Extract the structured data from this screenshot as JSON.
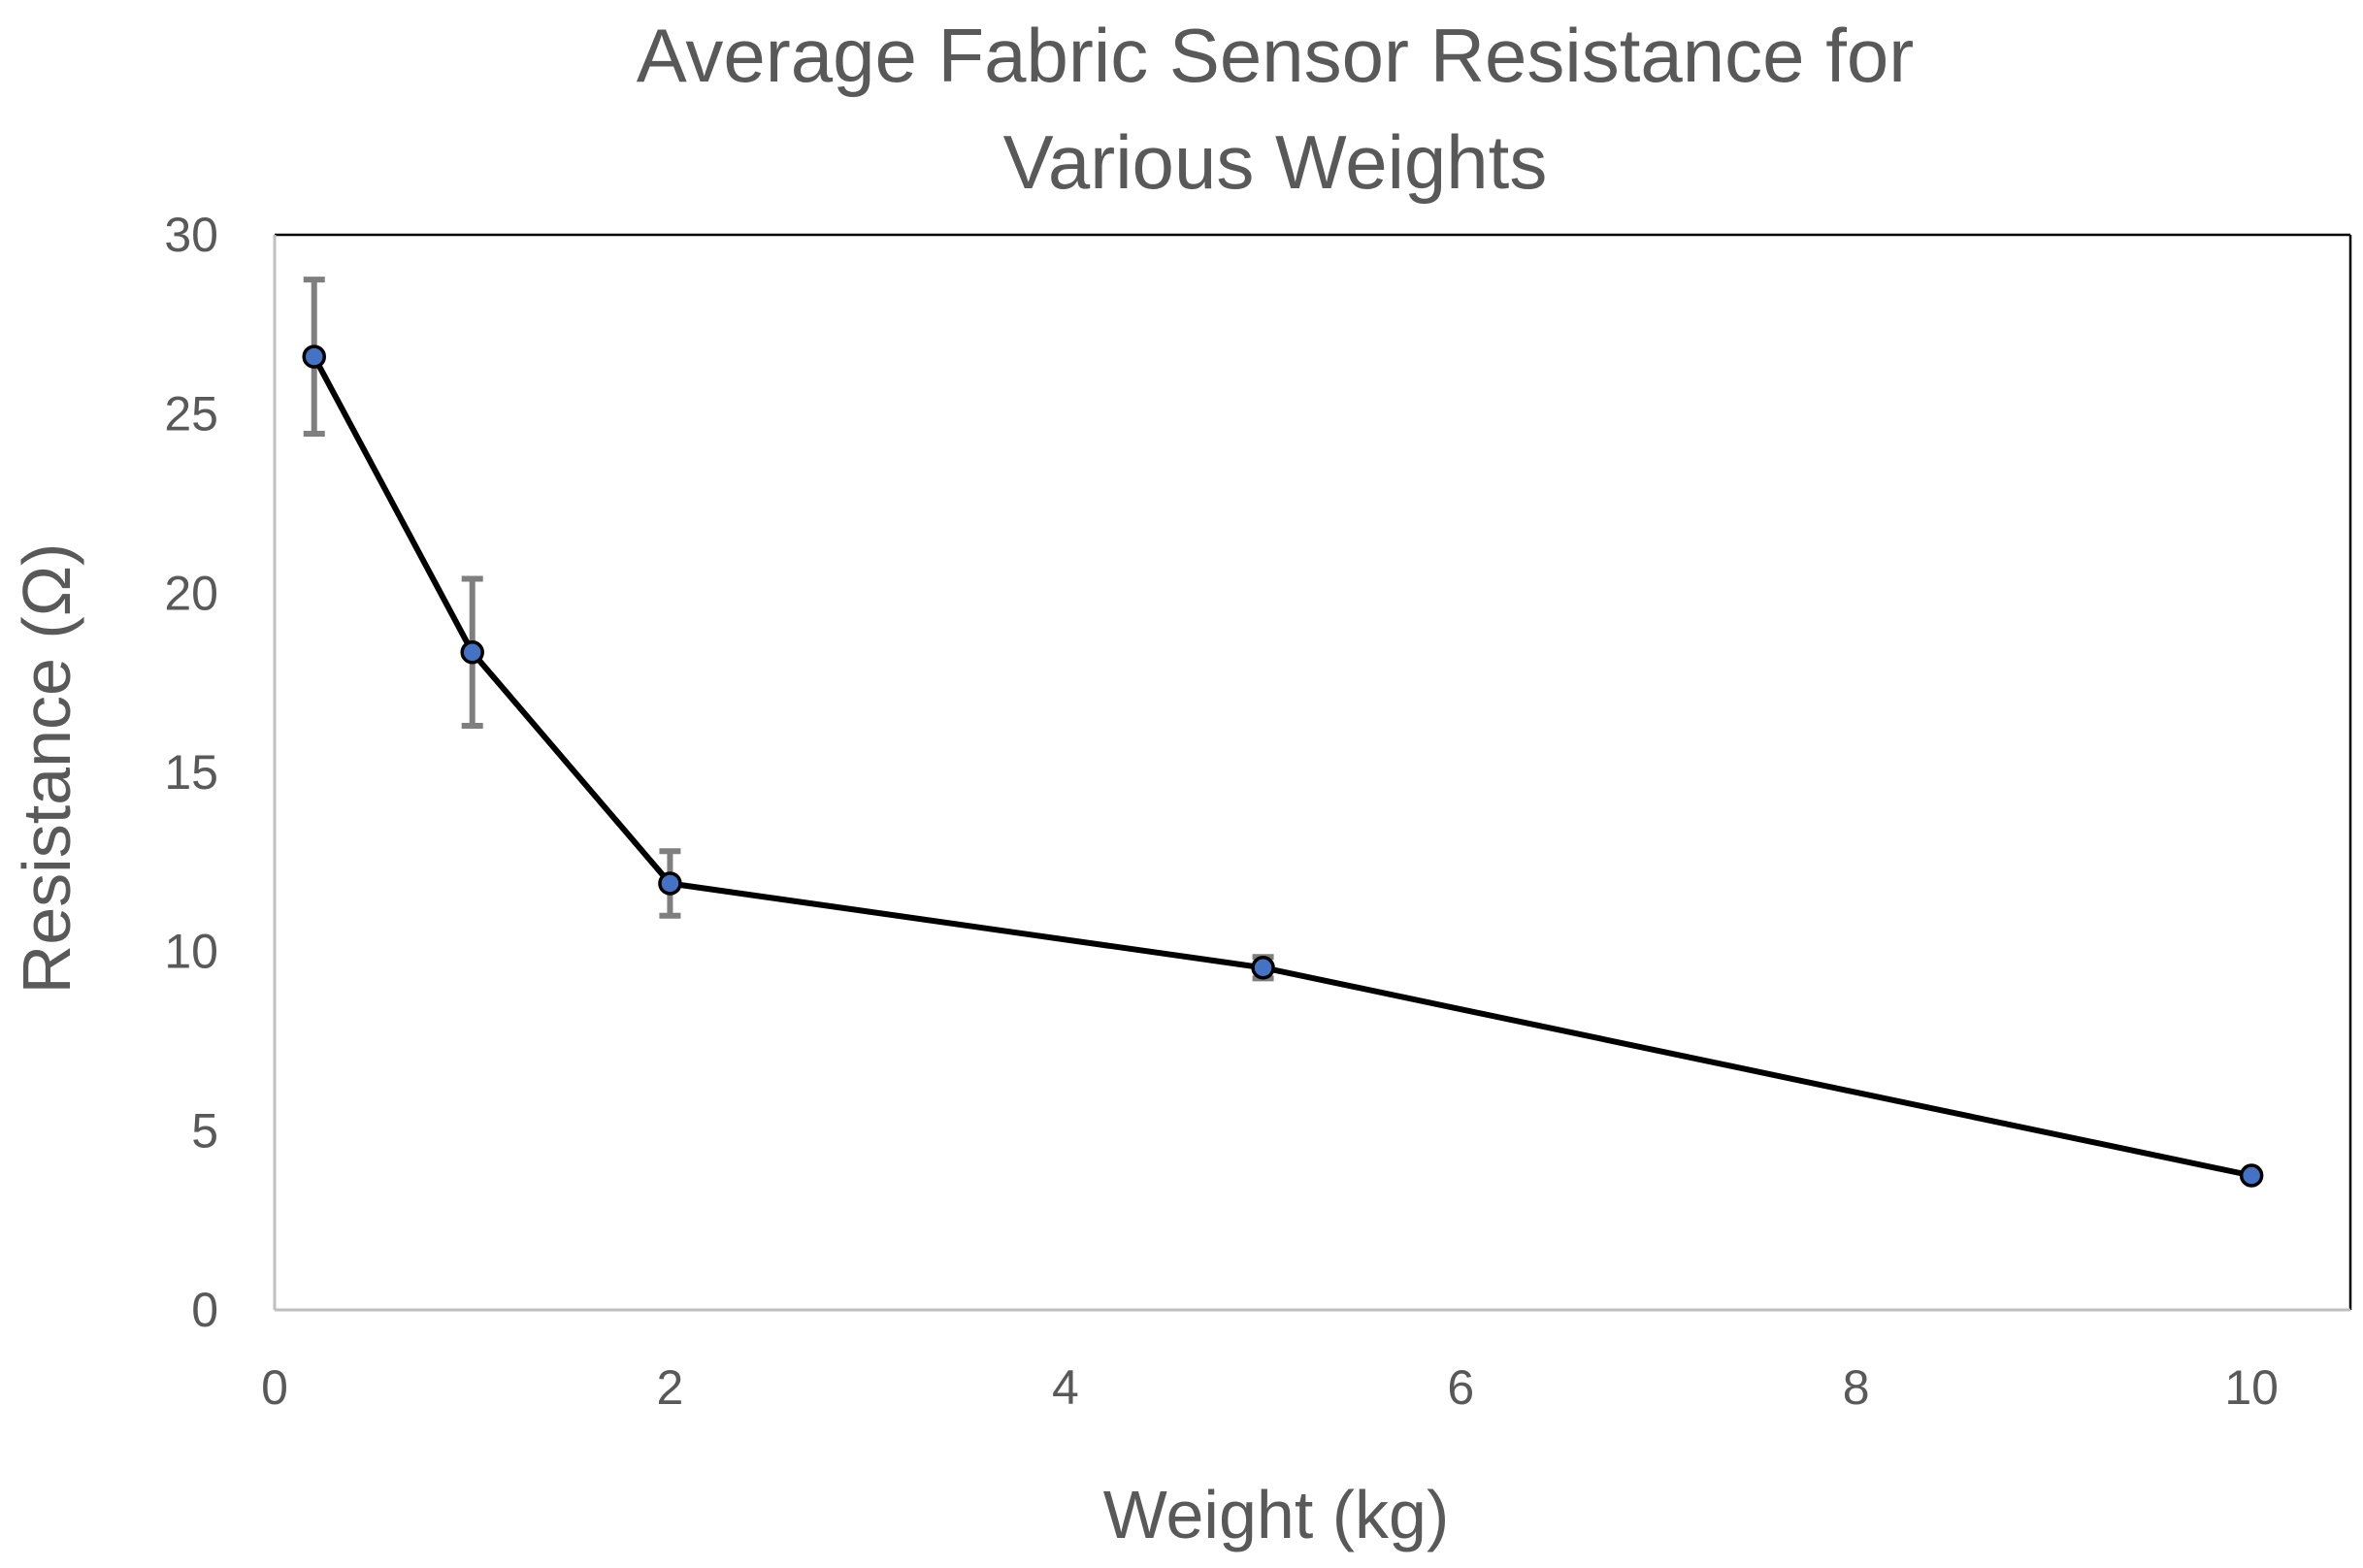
{
  "chart_data": {
    "type": "line",
    "title_lines": [
      "Average Fabric Sensor Resistance for",
      "Various Weights"
    ],
    "xlabel": "Weight (kg)",
    "ylabel": "Resistance (Ω)",
    "xlim": [
      0,
      10.5
    ],
    "ylim": [
      0,
      30
    ],
    "xticks": [
      "0",
      "2",
      "4",
      "6",
      "8",
      "10"
    ],
    "yticks": [
      "0",
      "5",
      "10",
      "15",
      "20",
      "25",
      "30"
    ],
    "grid": false,
    "legend": "none",
    "series": [
      {
        "x": [
          0.2,
          1,
          2,
          5,
          10
        ],
        "y": [
          26.6,
          18.35,
          11.9,
          9.55,
          3.75
        ],
        "error": [
          2.15,
          2.05,
          0.9,
          0.3,
          0.0
        ]
      }
    ],
    "colors": {
      "line": "#000000",
      "marker_fill": "#4472C4",
      "marker_edge": "#000000",
      "error_bar": "#7f7f7f",
      "text": "#595959",
      "axis": "#bfbfbf",
      "frame": "#000000"
    }
  }
}
